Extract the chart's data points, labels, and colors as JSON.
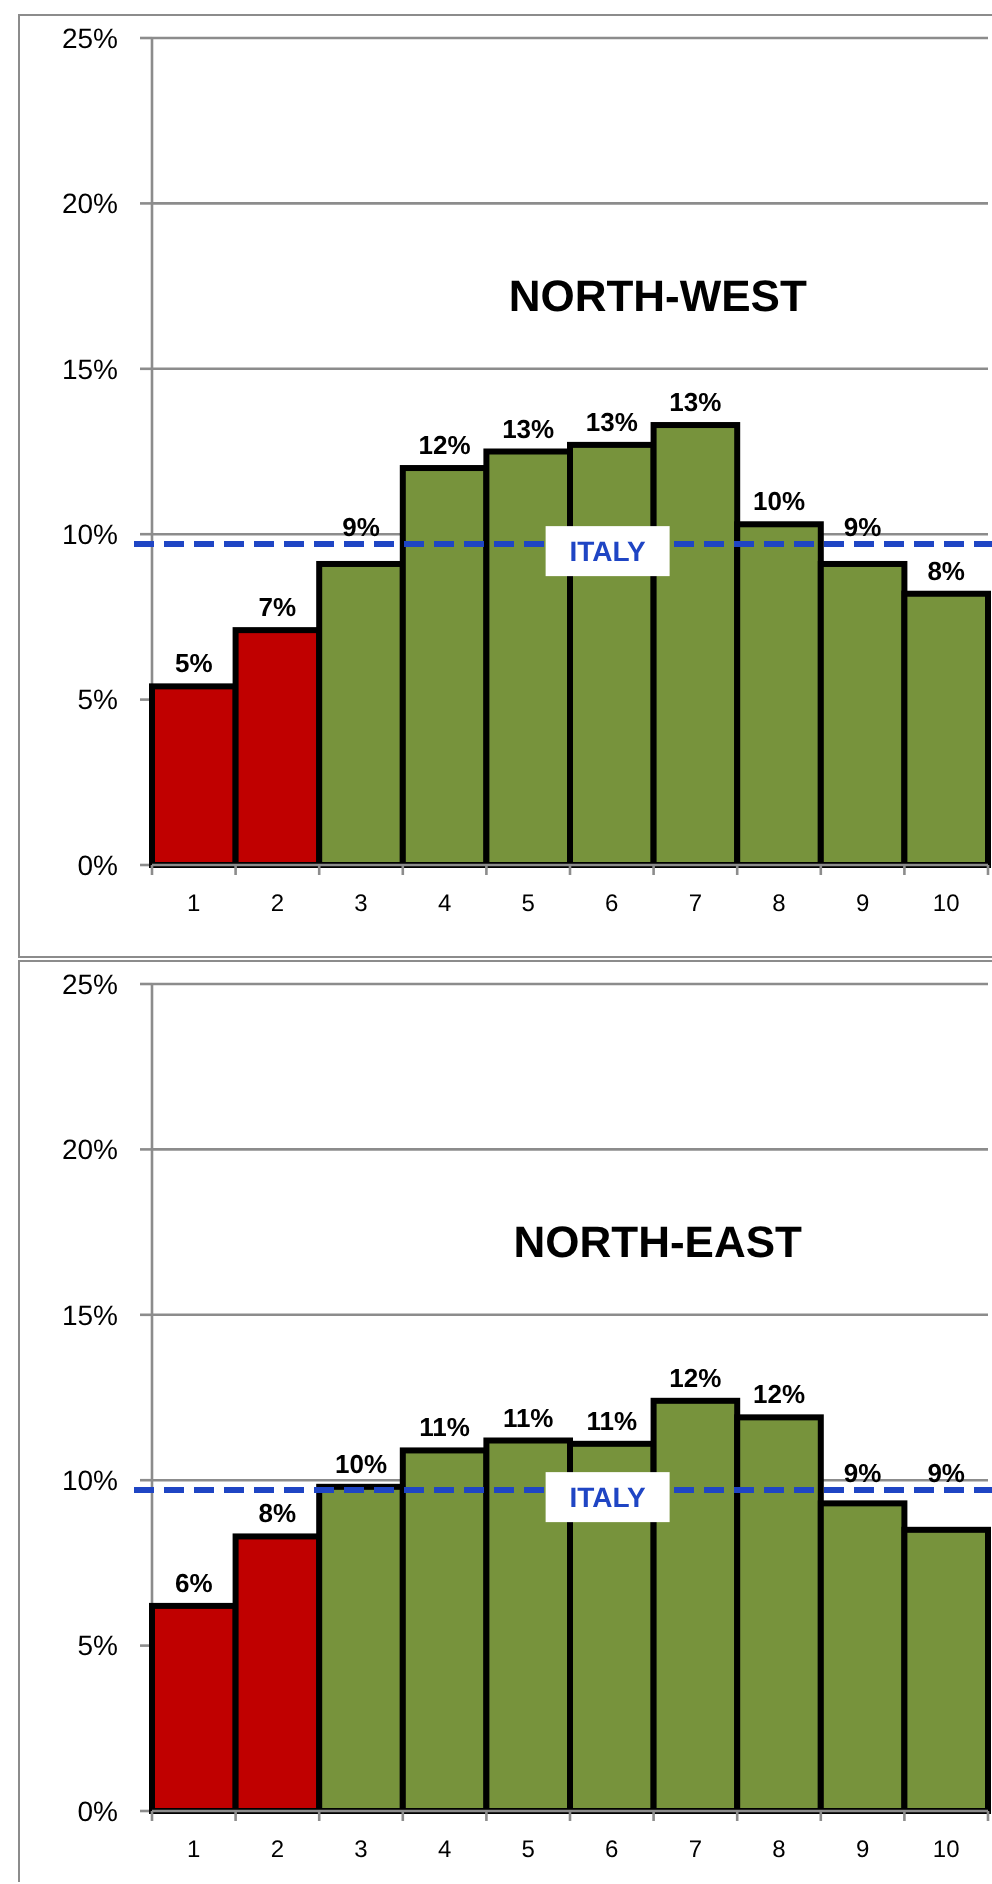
{
  "chart_data": [
    {
      "type": "bar",
      "title": "NORTH-WEST",
      "categories": [
        "1",
        "2",
        "3",
        "4",
        "5",
        "6",
        "7",
        "8",
        "9",
        "10"
      ],
      "values": [
        5.4,
        7.1,
        9.1,
        12.0,
        12.5,
        12.7,
        13.3,
        10.3,
        9.1,
        8.2
      ],
      "colors": [
        "#c00000",
        "#c00000",
        "#77933c",
        "#77933c",
        "#77933c",
        "#77933c",
        "#77933c",
        "#77933c",
        "#77933c",
        "#77933c"
      ],
      "value_labels": [
        "5%",
        "7%",
        "9%",
        "12%",
        "13%",
        "13%",
        "13%",
        "10%",
        "9%",
        "8%"
      ],
      "ylim": [
        0,
        25
      ],
      "yticks": [
        {
          "value": 0,
          "label": "0%"
        },
        {
          "value": 5,
          "label": "5%"
        },
        {
          "value": 10,
          "label": "10%"
        },
        {
          "value": 15,
          "label": "15%"
        },
        {
          "value": 20,
          "label": "20%"
        },
        {
          "value": 25,
          "label": "25%"
        }
      ],
      "grid": "y",
      "ref_lines": [
        {
          "axis": "y",
          "value": 9.7,
          "label": "ITALY",
          "color": "#1f45c4",
          "line_style": "dashed"
        }
      ]
    },
    {
      "type": "bar",
      "title": "NORTH-EAST",
      "categories": [
        "1",
        "2",
        "3",
        "4",
        "5",
        "6",
        "7",
        "8",
        "9",
        "10"
      ],
      "values": [
        6.2,
        8.3,
        9.8,
        10.9,
        11.2,
        11.1,
        12.4,
        11.9,
        9.3,
        8.5
      ],
      "colors": [
        "#c00000",
        "#c00000",
        "#77933c",
        "#77933c",
        "#77933c",
        "#77933c",
        "#77933c",
        "#77933c",
        "#77933c",
        "#77933c"
      ],
      "value_labels": [
        "6%",
        "8%",
        "10%",
        "11%",
        "11%",
        "11%",
        "12%",
        "12%",
        "9%",
        "9%"
      ],
      "ylim": [
        0,
        25
      ],
      "yticks": [
        {
          "value": 0,
          "label": "0%"
        },
        {
          "value": 5,
          "label": "5%"
        },
        {
          "value": 10,
          "label": "10%"
        },
        {
          "value": 15,
          "label": "15%"
        },
        {
          "value": 20,
          "label": "20%"
        },
        {
          "value": 25,
          "label": "25%"
        }
      ],
      "grid": "y",
      "ref_lines": [
        {
          "axis": "y",
          "value": 9.7,
          "label": "ITALY",
          "color": "#1f45c4",
          "line_style": "dashed"
        }
      ]
    }
  ]
}
